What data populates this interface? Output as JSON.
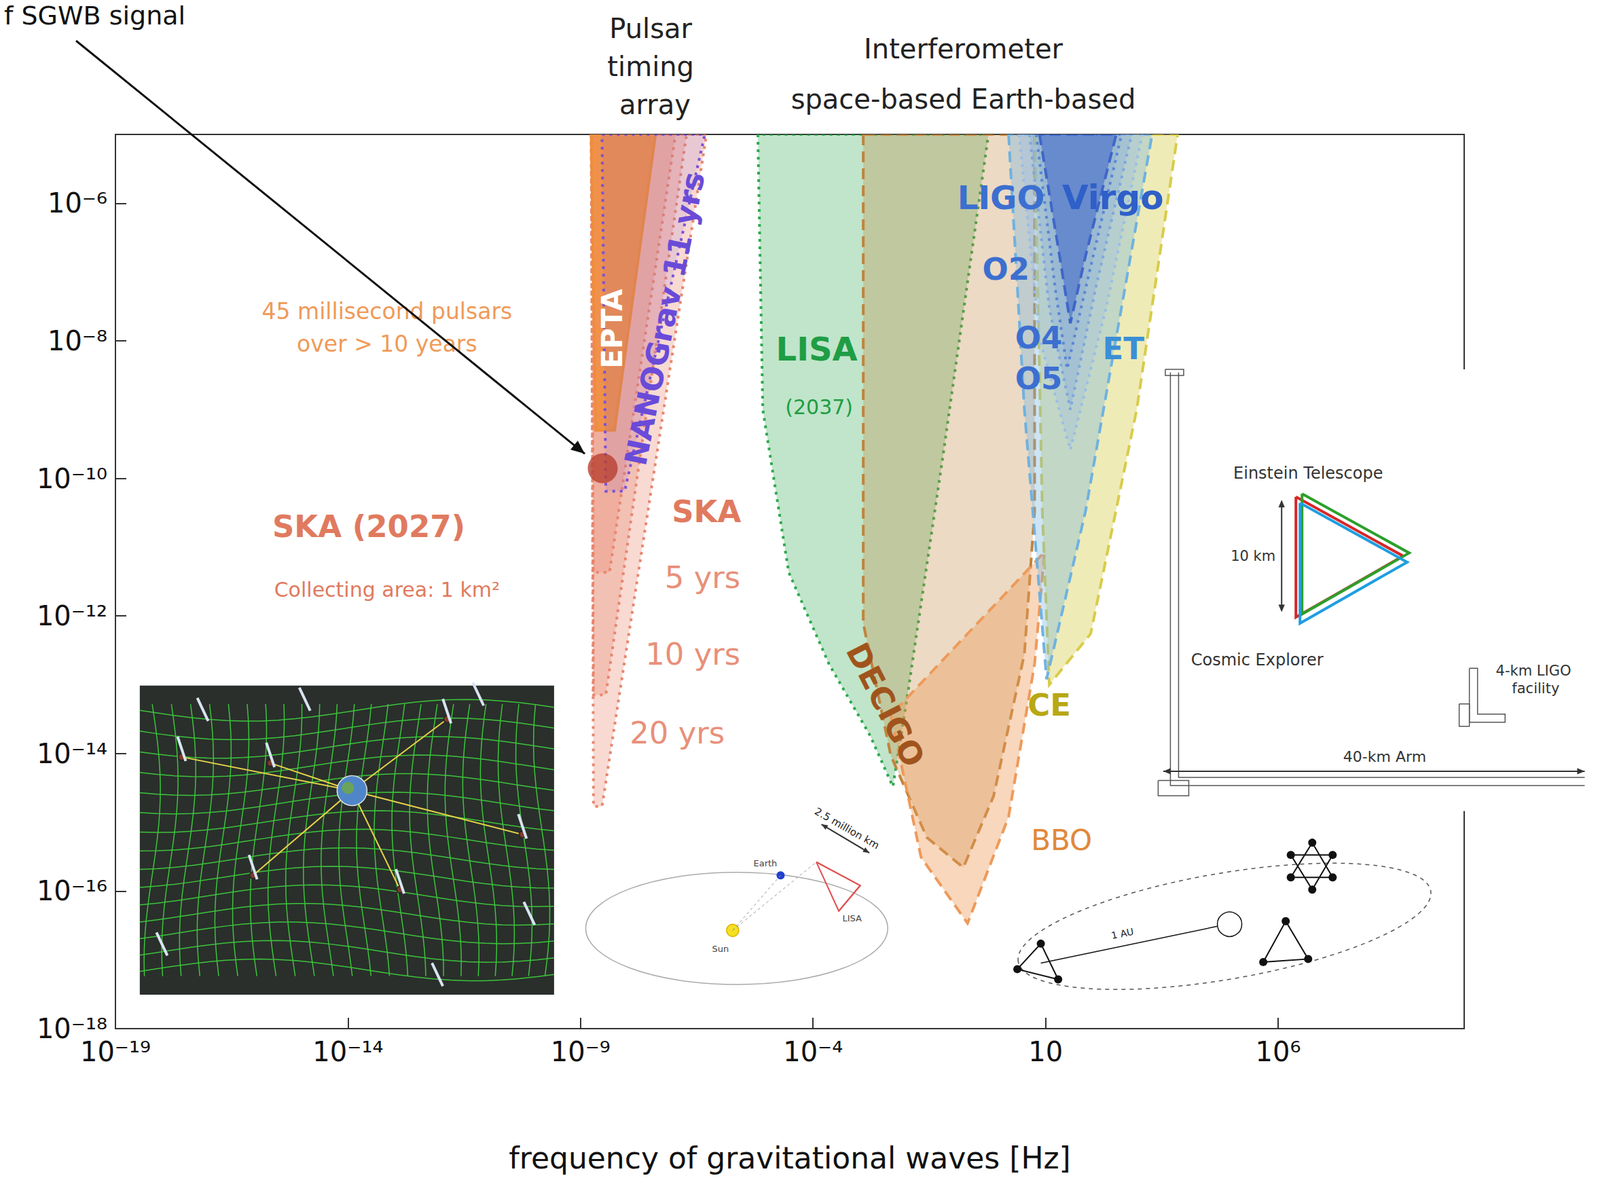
{
  "chart_data": {
    "type": "area",
    "x_label": "frequency of gravitational waves [Hz]",
    "log": true,
    "grid": false,
    "xlim": [
      1e-19,
      10000000000.0
    ],
    "ylim": [
      1e-18,
      1e-05
    ],
    "xticks": [
      {
        "value": 1e-19,
        "label": "10⁻¹⁹"
      },
      {
        "value": 1e-14,
        "label": "10⁻¹⁴"
      },
      {
        "value": 1e-09,
        "label": "10⁻⁹"
      },
      {
        "value": 0.0001,
        "label": "10⁻⁴"
      },
      10,
      {
        "value": 1000000.0,
        "label": "10⁶"
      }
    ],
    "yticks": [
      {
        "value": 1e-18,
        "label": "10⁻¹⁸"
      },
      {
        "value": 1e-16,
        "label": "10⁻¹⁶"
      },
      {
        "value": 1e-14,
        "label": "10⁻¹⁴"
      },
      {
        "value": 1e-12,
        "label": "10⁻¹²"
      },
      {
        "value": 1e-10,
        "label": "10⁻¹⁰"
      },
      {
        "value": 1e-08,
        "label": "10⁻⁸"
      },
      {
        "value": 1e-06,
        "label": "10⁻⁶"
      }
    ],
    "headers": [
      {
        "text": "Pulsar timing array",
        "x": 4e-08
      },
      {
        "text": "Interferometer",
        "x": 0.17
      },
      {
        "text": "space-based Earth-based",
        "x": 0.17
      }
    ],
    "annotations": [
      {
        "text": "45 millisecond pulsars",
        "x": 6.9e-14,
        "y": 2.7e-08
      },
      {
        "text": "over > 10 years",
        "x": 6.9e-14,
        "y": 9.1e-09
      },
      {
        "text": "SKA (2027)",
        "x": 2.8e-14,
        "y": 2e-11
      },
      {
        "text": "Collecting area: 1 km²",
        "x": 6.9e-14,
        "y": 2.4e-12
      },
      {
        "text": "SKA",
        "x": 5.1e-07,
        "y": 3.3e-11
      },
      {
        "text": "(2037)",
        "x": 0.000135,
        "y": 1.1e-09
      },
      {
        "text": "LIGO",
        "x": 1.1,
        "y": 1.2e-06
      }
    ],
    "inset_texts": [
      "Einstein Telescope",
      "10 km",
      "Cosmic Explorer",
      "4-km LIGO facility",
      "40-km Arm",
      "2.5 million km",
      "1 AU",
      "Earth",
      "Sun",
      "LISA"
    ],
    "series": [
      {
        "name": "LISA",
        "color": "#2fa84f",
        "line_style": "dotted",
        "label_x": 0.00012,
        "label_y": 7.6e-09,
        "values": [
          [
            6.5e-06,
            1e-05
          ],
          [
            8.3e-06,
            1e-09
          ],
          [
            3e-05,
            4.3e-12
          ],
          [
            0.00022,
            2e-13
          ],
          [
            0.0017,
            1.8e-14
          ],
          [
            0.0052,
            3.3e-15
          ],
          [
            0.01,
            5.1e-14
          ],
          [
            0.06,
            1.8e-10
          ],
          [
            0.59,
            1e-05
          ]
        ]
      },
      {
        "name": "DECIGO",
        "color": "#c0843c",
        "line_style": "dashed",
        "label_x": 0.0036,
        "label_y": 5.1e-14,
        "values": [
          [
            0.0012,
            1e-05
          ],
          [
            0.0012,
            7.8e-13
          ],
          [
            0.0047,
            9.3e-15
          ],
          [
            0.028,
            6e-16
          ],
          [
            0.17,
            2.2e-16
          ],
          [
            0.76,
            2.4e-15
          ],
          [
            3.5,
            2.8e-13
          ],
          [
            5.8,
            3.3e-11
          ],
          [
            5.8,
            1e-05
          ]
        ]
      },
      {
        "name": "BBO",
        "color": "#ee9a5a",
        "line_style": "dashed",
        "label_x": 22,
        "label_y": 5.5e-16,
        "values": [
          [
            0.0047,
            3.6e-14
          ],
          [
            0.021,
            3.1e-16
          ],
          [
            0.21,
            3.4e-17
          ],
          [
            1.6,
            1.2e-15
          ],
          [
            5.8,
            2e-13
          ],
          [
            9.5,
            8.5e-12
          ]
        ]
      },
      {
        "name": "CE",
        "color": "#d8cc4a",
        "line_style": "dashed",
        "label_x": 12,
        "label_y": 5.1e-14,
        "values": [
          [
            5.8,
            1e-05
          ],
          [
            8.5,
            3.3e-11
          ],
          [
            12,
            1e-13
          ],
          [
            93,
            5.5e-13
          ],
          [
            910,
            1e-09
          ],
          [
            6900,
            1e-05
          ]
        ]
      },
      {
        "name": "ET",
        "color": "#6fb2e0",
        "line_style": "dashed",
        "label_x": 470,
        "label_y": 7.6e-09,
        "values": [
          [
            1.6,
            1e-05
          ],
          [
            3.5,
            1e-09
          ],
          [
            10.5,
            1.2e-13
          ],
          [
            72,
            3.3e-11
          ],
          [
            1950,
            1e-05
          ]
        ]
      },
      {
        "name": "O5",
        "color": "#9bbde6",
        "line_style": "dotted",
        "label_x": 7.1,
        "label_y": 2.8e-09,
        "values": [
          [
            2.7,
            1e-05
          ],
          [
            7.4,
            1.1e-08
          ],
          [
            34,
            2.6e-10
          ],
          [
            200,
            3e-08
          ],
          [
            1200,
            1e-05
          ]
        ]
      },
      {
        "name": "O4",
        "color": "#7fa6dc",
        "line_style": "dotted",
        "label_x": 7.1,
        "label_y": 1.1e-08,
        "values": [
          [
            4.5,
            1e-05
          ],
          [
            12,
            3e-08
          ],
          [
            34,
            1e-09
          ],
          [
            120,
            5.9e-08
          ],
          [
            710,
            1e-05
          ]
        ]
      },
      {
        "name": "O2",
        "color": "#5b86d4",
        "line_style": "dotted",
        "label_x": 1.4,
        "label_y": 1.1e-07,
        "values": [
          [
            6.3,
            1e-05
          ],
          [
            16,
            5.9e-08
          ],
          [
            29,
            3.9e-09
          ],
          [
            65,
            4.2e-08
          ],
          [
            430,
            1e-05
          ]
        ]
      },
      {
        "name": "Virgo",
        "color": "#3f66c8",
        "line_style": "dashed",
        "label_x": 280,
        "label_y": 1.2e-06,
        "values": [
          [
            7.4,
            1e-05
          ],
          [
            20,
            1.7e-07
          ],
          [
            34,
            1.8e-08
          ],
          [
            72,
            1.7e-07
          ],
          [
            330,
            1e-05
          ]
        ]
      },
      {
        "name": "20 yrs",
        "color": "#e8866e",
        "line_style": "dotted",
        "label_x": 1.2e-07,
        "label_y": 2e-14,
        "values": [
          [
            1.7e-09,
            1e-05
          ],
          [
            5.1e-07,
            1e-05
          ],
          [
            2.9e-09,
            1.7e-15
          ],
          [
            1.9e-09,
            1.7e-15
          ]
        ]
      },
      {
        "name": "10 yrs",
        "color": "#e8866e",
        "line_style": "dotted",
        "label_x": 2.6e-07,
        "label_y": 2.8e-13,
        "values": [
          [
            1.7e-09,
            1e-05
          ],
          [
            1.9e-07,
            1e-05
          ],
          [
            3.5e-09,
            7.1e-14
          ],
          [
            1.9e-09,
            7.1e-14
          ]
        ]
      },
      {
        "name": "5 yrs",
        "color": "#e8866e",
        "line_style": "dotted",
        "label_x": 4.2e-07,
        "label_y": 3.6e-12,
        "values": [
          [
            1.7e-09,
            1e-05
          ],
          [
            1.1e-07,
            1e-05
          ],
          [
            4.2e-09,
            4.3e-12
          ],
          [
            1.9e-09,
            4.3e-12
          ]
        ]
      },
      {
        "name": "EPTA",
        "color": "#f08c3c",
        "line_style": "solid",
        "label_x": 4.8e-09,
        "label_y": 1.5e-08,
        "values": [
          [
            1.7e-09,
            1e-05
          ],
          [
            4.1e-08,
            1e-05
          ],
          [
            5.4e-09,
            5e-10
          ],
          [
            2.1e-09,
            5e-10
          ]
        ]
      },
      {
        "name": "NANOGrav 11 yrs",
        "color": "#7b52d6",
        "line_style": "dotted",
        "label_x": 6.5e-08,
        "label_y": 2.1e-08,
        "values": [
          [
            2.9e-09,
            1e-05
          ],
          [
            4.7e-07,
            1e-05
          ],
          [
            8.9e-09,
            6.5e-11
          ],
          [
            3.5e-09,
            6.5e-11
          ]
        ]
      },
      {
        "type": "scatter",
        "color": "#b84030",
        "annotation": "f SGWB signal",
        "values": [
          [
            3e-09,
            1.4e-10
          ]
        ]
      }
    ]
  }
}
